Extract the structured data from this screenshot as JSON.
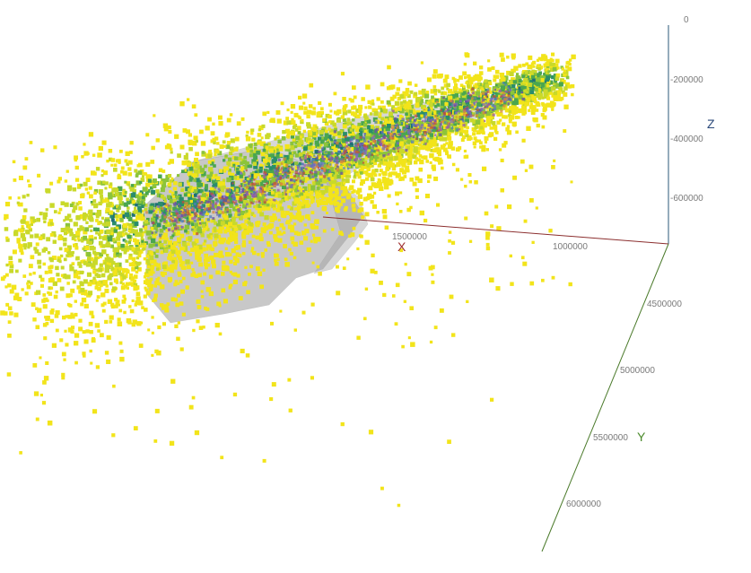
{
  "chart_data": {
    "type": "scatter",
    "dimensions": 3,
    "title": "",
    "axes": {
      "x": {
        "label": "X",
        "color": "#8b2e2e",
        "ticks": [
          1500000,
          1000000
        ]
      },
      "y": {
        "label": "Y",
        "color": "#4a7a2a",
        "ticks": [
          4500000,
          5000000,
          5500000,
          6000000
        ]
      },
      "z": {
        "label": "Z",
        "color": "#2b4a7a",
        "ticks": [
          0,
          -200000,
          -400000,
          -600000
        ]
      }
    },
    "x_range": [
      600000,
      2300000
    ],
    "y_range": [
      4200000,
      6200000
    ],
    "z_range": [
      -760000,
      0
    ],
    "grid": false,
    "legend": "none",
    "colormap": [
      "#1f6f77",
      "#2a8d6b",
      "#4aa64f",
      "#8cc43a",
      "#c9d92a",
      "#f2e41a"
    ],
    "surface": {
      "color": "#9a9a9a",
      "opacity": 0.55
    },
    "point_cloud": {
      "description_counts": "sampled",
      "series": [
        {
          "x": 1700000,
          "y": 4500000,
          "z": -420000
        },
        {
          "x": 2100000,
          "y": 5000000,
          "z": -360000
        },
        {
          "x": 1300000,
          "y": 4350000,
          "z": -300000
        },
        {
          "x": 900000,
          "y": 4250000,
          "z": -120000
        }
      ]
    }
  }
}
